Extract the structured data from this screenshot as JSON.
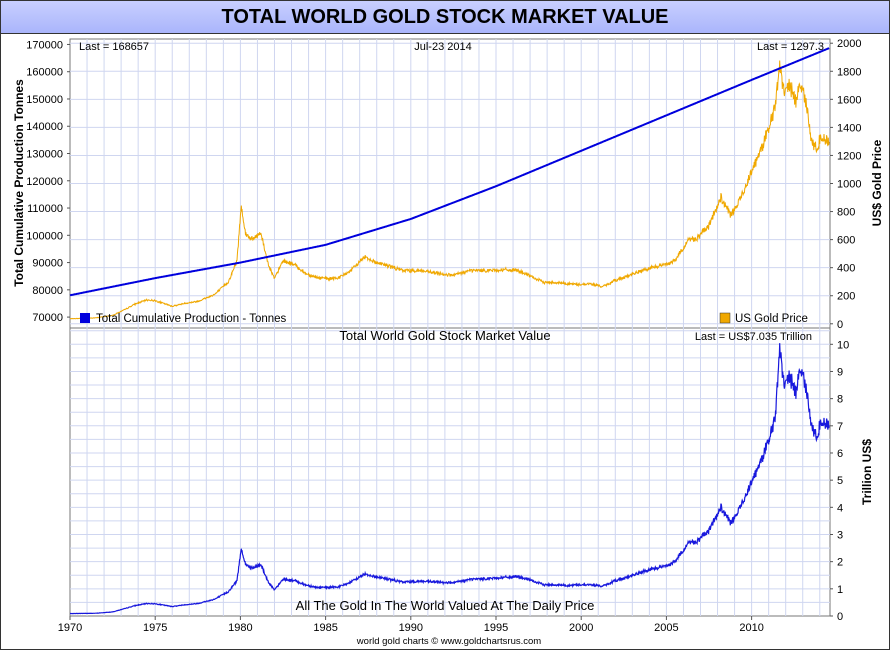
{
  "page": {
    "title": "TOTAL WORLD GOLD STOCK MARKET VALUE",
    "footer": "world gold charts © www.goldchartsrus.com"
  },
  "colors": {
    "production": "#0000dd",
    "gold_price": "#f0a800",
    "market_value": "#1818dd",
    "grid": "#cfd6f0",
    "title_bg": "#b4bdfc"
  },
  "chart_data": [
    {
      "type": "line",
      "panel": "top",
      "header": {
        "left": "Last = 168657",
        "center": "Jul-23  2014",
        "right": "Last = 1297.3"
      },
      "ylabel_left": "Total Cumulative Production Tonnes",
      "ylabel_right": "US$ Gold Price",
      "xlim": [
        1970,
        2014.6
      ],
      "ylim_left": [
        66000,
        172000
      ],
      "ylim_right": [
        -30,
        2030
      ],
      "yticks_left": [
        70000,
        80000,
        90000,
        100000,
        110000,
        120000,
        130000,
        140000,
        150000,
        160000,
        170000
      ],
      "yticks_right": [
        0,
        200,
        400,
        600,
        800,
        1000,
        1200,
        1400,
        1600,
        1800,
        2000
      ],
      "grid": true,
      "legend": [
        {
          "label": "Total Cumulative Production - Tonnes",
          "position": "bottom-left"
        },
        {
          "label": "US Gold Price",
          "position": "bottom-right"
        }
      ],
      "series": [
        {
          "name": "Total Cumulative Production - Tonnes",
          "axis": "left",
          "x": [
            1970,
            1975,
            1980,
            1985,
            1990,
            1995,
            2000,
            2005,
            2010,
            2014.55
          ],
          "y": [
            78000,
            84300,
            90000,
            96500,
            106000,
            118000,
            131000,
            144000,
            157000,
            168657
          ]
        },
        {
          "name": "US Gold Price",
          "axis": "right",
          "x": [
            1970,
            1971.5,
            1972.5,
            1973.2,
            1973.8,
            1974.5,
            1975,
            1976,
            1976.7,
            1977.5,
            1978.5,
            1979.3,
            1979.8,
            1980.05,
            1980.3,
            1980.7,
            1981.2,
            1981.6,
            1982,
            1982.5,
            1983.2,
            1983.8,
            1984.5,
            1985.2,
            1985.8,
            1986.5,
            1987.3,
            1987.9,
            1988.5,
            1989.5,
            1990.5,
            1991.5,
            1992.5,
            1993.5,
            1994.5,
            1995.5,
            1996.3,
            1997,
            1997.8,
            1998.5,
            1999.3,
            1999.8,
            2000.5,
            2001.3,
            2002,
            2002.8,
            2003.5,
            2004.3,
            2005,
            2005.5,
            2006.3,
            2006.8,
            2007.5,
            2008.2,
            2008.8,
            2009.5,
            2010,
            2010.5,
            2011,
            2011.4,
            2011.65,
            2011.9,
            2012.2,
            2012.6,
            2012.9,
            2013.2,
            2013.5,
            2013.8,
            2014.1,
            2014.55
          ],
          "y": [
            36,
            42,
            60,
            100,
            140,
            170,
            165,
            125,
            145,
            160,
            210,
            300,
            450,
            850,
            640,
            600,
            650,
            440,
            320,
            450,
            420,
            360,
            330,
            320,
            330,
            380,
            480,
            440,
            420,
            380,
            380,
            360,
            345,
            380,
            380,
            385,
            380,
            340,
            295,
            295,
            285,
            280,
            285,
            265,
            310,
            345,
            375,
            405,
            425,
            450,
            600,
            610,
            700,
            900,
            770,
            930,
            1100,
            1220,
            1400,
            1550,
            1850,
            1650,
            1700,
            1600,
            1720,
            1580,
            1300,
            1250,
            1330,
            1297.3
          ]
        }
      ]
    },
    {
      "type": "line",
      "panel": "bottom",
      "title": "Total World Gold Stock Market Value",
      "header_right": "Last = US$7.035 Trillion",
      "annotation": "All The Gold In The World Valued At The Daily Price",
      "ylabel_right": "Trillion US$",
      "xlim": [
        1970,
        2014.6
      ],
      "ylim": [
        0,
        10.6
      ],
      "yticks": [
        0,
        1,
        2,
        3,
        4,
        5,
        6,
        7,
        8,
        9,
        10
      ],
      "xticks": [
        1970,
        1975,
        1980,
        1985,
        1990,
        1995,
        2000,
        2005,
        2010
      ],
      "grid": true,
      "series": [
        {
          "name": "Total World Gold Stock Market Value",
          "x": [
            1970,
            1971.5,
            1972.5,
            1973.2,
            1973.8,
            1974.5,
            1975,
            1976,
            1976.7,
            1977.5,
            1978.5,
            1979.3,
            1979.8,
            1980.05,
            1980.3,
            1980.7,
            1981.2,
            1981.6,
            1982,
            1982.5,
            1983.2,
            1983.8,
            1984.5,
            1985.2,
            1985.8,
            1986.5,
            1987.3,
            1987.9,
            1988.5,
            1989.5,
            1990.5,
            1991.5,
            1992.5,
            1993.5,
            1994.5,
            1995.5,
            1996.3,
            1997,
            1997.8,
            1998.5,
            1999.3,
            1999.8,
            2000.5,
            2001.3,
            2002,
            2002.8,
            2003.5,
            2004.3,
            2005,
            2005.5,
            2006.3,
            2006.8,
            2007.5,
            2008.2,
            2008.8,
            2009.5,
            2010,
            2010.5,
            2011,
            2011.4,
            2011.65,
            2011.9,
            2012.2,
            2012.6,
            2012.9,
            2013.2,
            2013.5,
            2013.8,
            2014.1,
            2014.55
          ],
          "y": [
            0.09,
            0.1,
            0.15,
            0.27,
            0.38,
            0.46,
            0.45,
            0.35,
            0.41,
            0.46,
            0.62,
            0.9,
            1.3,
            2.5,
            1.9,
            1.75,
            1.9,
            1.3,
            0.95,
            1.35,
            1.3,
            1.15,
            1.05,
            1.05,
            1.08,
            1.25,
            1.55,
            1.45,
            1.38,
            1.25,
            1.28,
            1.25,
            1.22,
            1.35,
            1.38,
            1.42,
            1.45,
            1.32,
            1.15,
            1.15,
            1.12,
            1.15,
            1.15,
            1.1,
            1.3,
            1.45,
            1.6,
            1.75,
            1.85,
            2.0,
            2.7,
            2.75,
            3.15,
            4.0,
            3.4,
            4.2,
            5.0,
            5.6,
            6.5,
            7.3,
            9.9,
            8.5,
            8.8,
            8.3,
            9.2,
            8.4,
            7.0,
            6.6,
            7.15,
            7.035
          ]
        }
      ]
    }
  ]
}
